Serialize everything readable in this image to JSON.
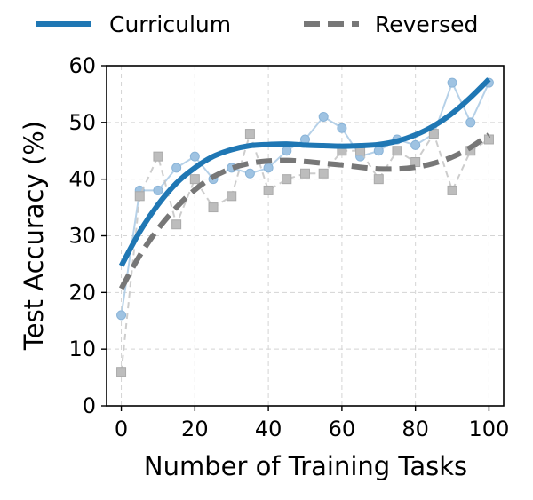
{
  "chart_data": {
    "type": "line",
    "title": "",
    "xlabel": "Number of Training Tasks",
    "ylabel": "Test Accuracy (%)",
    "xlim": [
      -4,
      104
    ],
    "ylim": [
      0,
      60
    ],
    "xticks": [
      0,
      20,
      40,
      60,
      80,
      100
    ],
    "yticks": [
      0,
      10,
      20,
      30,
      40,
      50,
      60
    ],
    "grid": true,
    "legend_placement": "top, outside plot, horizontal",
    "x": [
      0,
      5,
      10,
      15,
      20,
      25,
      30,
      35,
      40,
      45,
      50,
      55,
      60,
      65,
      70,
      75,
      80,
      85,
      90,
      95,
      100
    ],
    "series": [
      {
        "name": "Curriculum",
        "color": "#1f77b4",
        "style": "solid",
        "values": [
          16,
          38,
          38,
          42,
          44,
          40,
          42,
          41,
          42,
          45,
          47,
          51,
          49,
          44,
          45,
          47,
          46,
          48,
          57,
          50,
          57
        ],
        "trend": [
          24.7,
          30.7,
          35.5,
          39.3,
          42.0,
          44.0,
          45.2,
          45.9,
          46.1,
          46.2,
          46.0,
          45.9,
          45.8,
          45.9,
          46.1,
          46.7,
          47.8,
          49.4,
          51.6,
          54.4,
          57.6
        ]
      },
      {
        "name": "Reversed",
        "color": "#777777",
        "style": "dashed",
        "values": [
          6,
          37,
          44,
          32,
          40,
          35,
          37,
          48,
          38,
          40,
          41,
          41,
          45,
          45,
          40,
          45,
          43,
          48,
          38,
          45,
          47
        ],
        "trend": [
          20.7,
          26.5,
          31.2,
          35.0,
          38.1,
          40.4,
          41.9,
          42.8,
          43.2,
          43.3,
          43.1,
          42.8,
          42.5,
          42.1,
          41.8,
          41.8,
          42.1,
          42.8,
          43.9,
          45.6,
          47.8
        ]
      }
    ]
  }
}
